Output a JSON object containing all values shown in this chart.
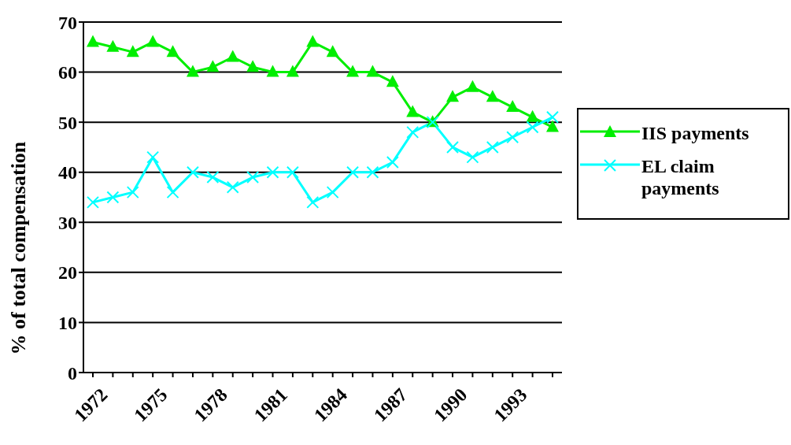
{
  "chart_data": {
    "type": "line",
    "ylabel": "% of total compensation",
    "categories": [
      "1972",
      null,
      null,
      "1975",
      null,
      null,
      "1978",
      null,
      null,
      "1981",
      null,
      null,
      "1984",
      null,
      null,
      "1987",
      null,
      null,
      "1990",
      null,
      null,
      "1993",
      null,
      null
    ],
    "series": [
      {
        "name": "IIS payments",
        "color": "#00ee00",
        "marker": "triangle",
        "values": [
          66,
          65,
          64,
          66,
          64,
          60,
          61,
          63,
          61,
          60,
          60,
          66,
          64,
          60,
          60,
          58,
          52,
          50,
          55,
          57,
          55,
          53,
          51,
          49
        ]
      },
      {
        "name": "EL claim payments",
        "color": "#00ffff",
        "marker": "cross",
        "values": [
          34,
          35,
          36,
          43,
          36,
          40,
          39,
          37,
          39,
          40,
          40,
          34,
          36,
          40,
          40,
          42,
          48,
          50,
          45,
          43,
          45,
          47,
          49,
          51
        ]
      }
    ],
    "ylim": [
      0,
      70
    ],
    "yticks": [
      0,
      10,
      20,
      30,
      40,
      50,
      60,
      70
    ],
    "grid": "y",
    "legend": "right",
    "line_style": "solid"
  }
}
